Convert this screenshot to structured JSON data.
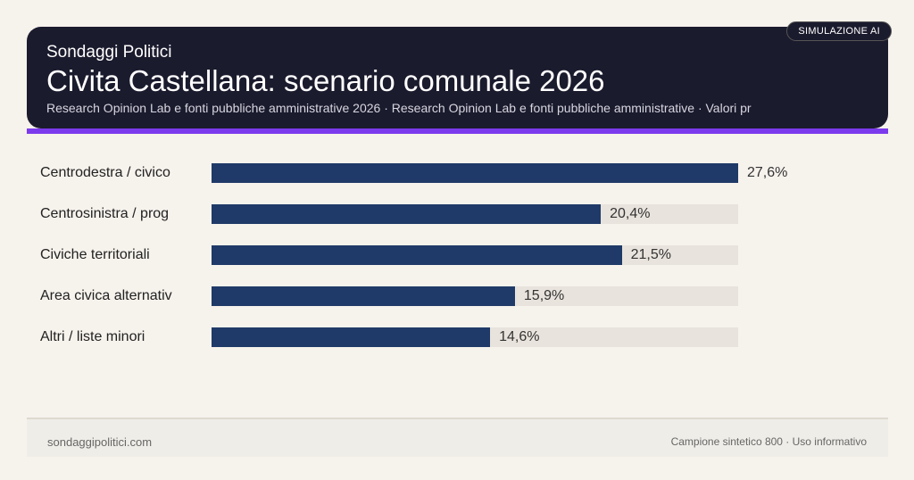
{
  "header": {
    "brand": "Sondaggi Politici",
    "title": "Civita Castellana: scenario comunale 2026",
    "subtitle": "Research Opinion Lab e fonti pubbliche amministrative 2026 · Research Opinion Lab e fonti pubbliche amministrative · Valori pr",
    "badge": "SIMULAZIONE AI"
  },
  "colors": {
    "bar": "#1f3a68",
    "track": "#e8e3dc",
    "accent": "#7c3aed",
    "header_bg": "#1b1b2e"
  },
  "chart_data": {
    "type": "bar",
    "orientation": "horizontal",
    "categories": [
      "Centrodestra / civico",
      "Centrosinistra / prog",
      "Civiche territoriali",
      "Area civica alternativ",
      "Altri / liste minori"
    ],
    "values": [
      27.6,
      20.4,
      21.5,
      15.9,
      14.6
    ],
    "value_labels": [
      "27,6%",
      "20,4%",
      "21,5%",
      "15,9%",
      "14,6%"
    ],
    "xlim": [
      0,
      27.6
    ],
    "unit": "%"
  },
  "footer": {
    "left": "sondaggipolitici.com",
    "right": "Campione sintetico 800 · Uso informativo"
  }
}
